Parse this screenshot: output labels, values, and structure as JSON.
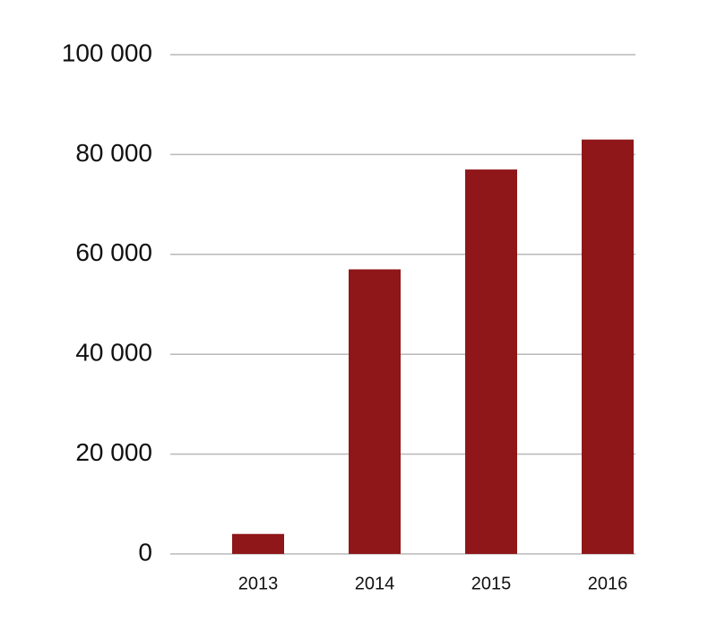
{
  "chart_data": {
    "type": "bar",
    "categories": [
      "2013",
      "2014",
      "2015",
      "2016"
    ],
    "values": [
      4000,
      57000,
      77000,
      83000
    ],
    "color": "#8f1619",
    "ylim": [
      0,
      100000
    ],
    "yticks": [
      0,
      {
        "value": 20000,
        "label": "20 000"
      },
      {
        "value": 40000,
        "label": "40 000"
      },
      {
        "value": 60000,
        "label": "60 000"
      },
      {
        "value": 80000,
        "label": "80 000"
      },
      {
        "value": 100000,
        "label": "100 000"
      }
    ],
    "grid": true
  }
}
